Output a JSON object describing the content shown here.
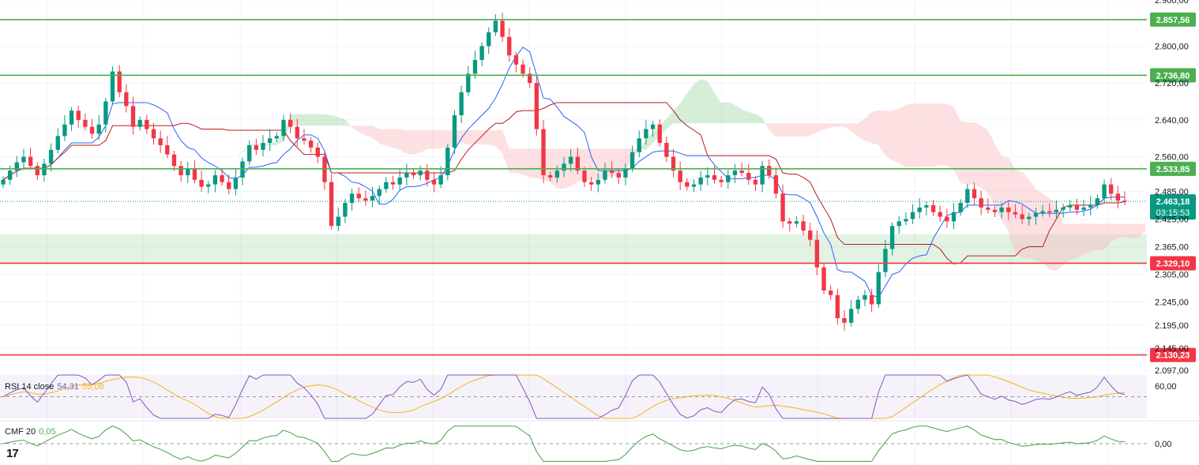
{
  "chart_data": {
    "type": "candlestick",
    "price_axis": {
      "ticks": [
        "2.900,00",
        "2.800,00",
        "2.720,00",
        "2.640,00",
        "2.560,00",
        "2.485,00",
        "2.425,00",
        "2.365,00",
        "2.305,00",
        "2.245,00",
        "2.195,00",
        "2.145,00",
        "2.097,00"
      ],
      "ylim": [
        2097,
        2900
      ]
    },
    "levels": [
      {
        "label": "2.857,56",
        "value": 2857.56,
        "color": "#4caf50"
      },
      {
        "label": "2.736,80",
        "value": 2736.8,
        "color": "#4caf50"
      },
      {
        "label": "2.533,85",
        "value": 2533.85,
        "color": "#4caf50"
      },
      {
        "label": "2.329,10",
        "value": 2329.1,
        "color": "#f23645"
      },
      {
        "label": "2.130,23",
        "value": 2130.23,
        "color": "#f23645"
      }
    ],
    "support_zone": [
      2329.1,
      2392
    ],
    "last_price": {
      "label": "2.463,18",
      "value": 2463.18,
      "countdown": "03:15:53",
      "color": "#089981"
    },
    "ohlc_close": [
      2510,
      2530,
      2548,
      2560,
      2540,
      2520,
      2545,
      2575,
      2605,
      2630,
      2660,
      2640,
      2625,
      2610,
      2630,
      2680,
      2745,
      2700,
      2670,
      2625,
      2640,
      2620,
      2600,
      2585,
      2565,
      2540,
      2520,
      2535,
      2510,
      2495,
      2500,
      2520,
      2505,
      2490,
      2515,
      2550,
      2585,
      2575,
      2590,
      2600,
      2605,
      2640,
      2625,
      2600,
      2595,
      2580,
      2560,
      2505,
      2410,
      2430,
      2460,
      2480,
      2470,
      2465,
      2475,
      2490,
      2505,
      2500,
      2515,
      2525,
      2520,
      2530,
      2510,
      2500,
      2520,
      2580,
      2650,
      2700,
      2740,
      2770,
      2800,
      2830,
      2855,
      2820,
      2780,
      2760,
      2740,
      2720,
      2620,
      2520,
      2515,
      2530,
      2545,
      2560,
      2530,
      2505,
      2500,
      2510,
      2530,
      2525,
      2515,
      2535,
      2570,
      2600,
      2620,
      2630,
      2590,
      2560,
      2530,
      2505,
      2495,
      2500,
      2515,
      2520,
      2510,
      2505,
      2520,
      2530,
      2525,
      2510,
      2500,
      2540,
      2520,
      2480,
      2420,
      2415,
      2420,
      2400,
      2380,
      2320,
      2270,
      2260,
      2210,
      2200,
      2230,
      2250,
      2260,
      2240,
      2310,
      2360,
      2410,
      2420,
      2425,
      2440,
      2450,
      2455,
      2440,
      2430,
      2420,
      2440,
      2460,
      2490,
      2470,
      2450,
      2445,
      2440,
      2450,
      2440,
      2435,
      2425,
      2430,
      2438,
      2442,
      2440,
      2445,
      2450,
      2455,
      2445,
      2450,
      2455,
      2470,
      2500,
      2480,
      2465,
      2463
    ],
    "indicators": [
      {
        "name": "RSI 14 close",
        "value": "54,31",
        "signal": "55,08",
        "tick": "60,00",
        "range": [
          30,
          70
        ]
      },
      {
        "name": "CMF 20",
        "value": "0,05",
        "tick": "0,00",
        "range": [
          -0.15,
          0.15
        ]
      }
    ],
    "colors": {
      "up": "#089981",
      "down": "#f23645",
      "tenkan": "#2962ff",
      "kijun": "#b71c1c",
      "cloud_up": "#a5d6a7",
      "cloud_down": "#f8bbbf",
      "rsi": "#7e57c2",
      "rsi_ma": "#f9b21a",
      "cmf": "#43a047"
    }
  }
}
